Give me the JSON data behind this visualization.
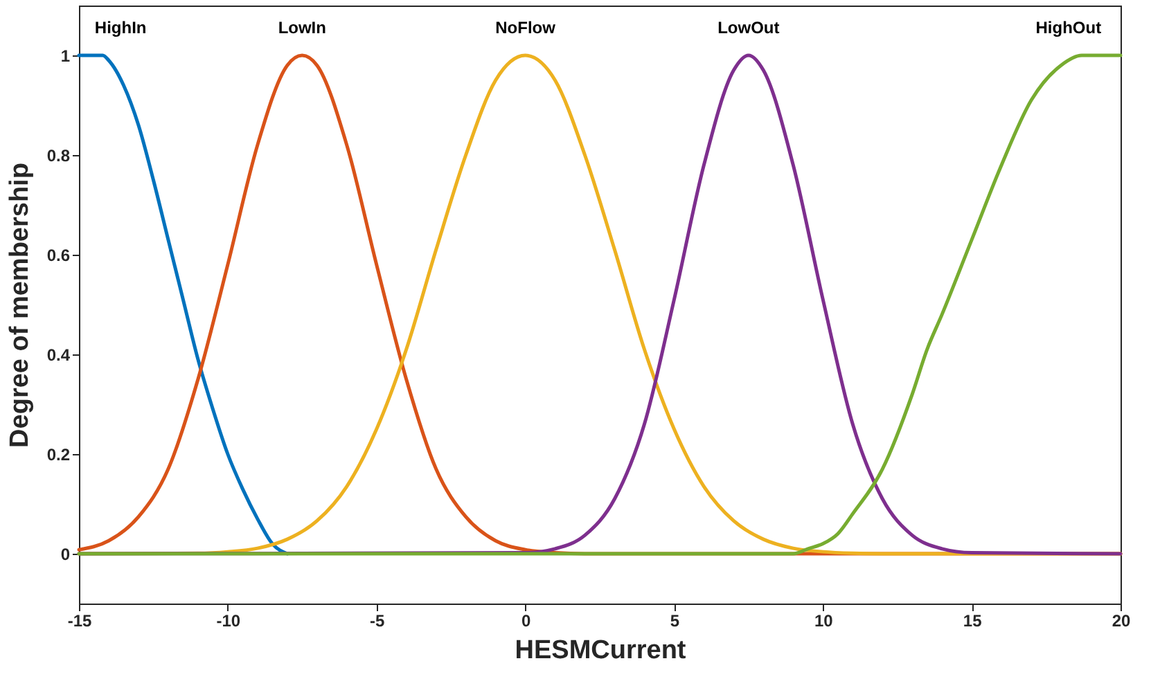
{
  "chart_data": {
    "type": "line",
    "xlabel": "HESMCurrent",
    "ylabel": "Degree of membership",
    "xlim": [
      -15,
      20
    ],
    "ylim": [
      -0.1,
      1.1
    ],
    "xticks": [
      -15,
      -10,
      -5,
      0,
      5,
      10,
      15,
      20
    ],
    "yticks": [
      0,
      0.2,
      0.4,
      0.6,
      0.8,
      1
    ],
    "grid": false,
    "legend": false,
    "marker": "none",
    "line_style": "solid",
    "series": [
      {
        "name": "HighIn",
        "color": "#0072bd",
        "x": [
          -15,
          -14.5,
          -14.2,
          -14,
          -13.5,
          -13,
          -12.5,
          -12,
          -11.5,
          -11,
          -10.5,
          -10,
          -9.5,
          -9,
          -8.5,
          -8
        ],
        "values": [
          1,
          1,
          1,
          0.99,
          0.94,
          0.86,
          0.75,
          0.63,
          0.51,
          0.39,
          0.29,
          0.2,
          0.13,
          0.07,
          0.02,
          0
        ]
      },
      {
        "name": "LowIn",
        "color": "#d95319",
        "x": [
          -15,
          -14,
          -13,
          -12,
          -11,
          -10,
          -9,
          -8,
          -7.5,
          -7,
          -6,
          -5,
          -4,
          -3,
          -2,
          -1,
          0,
          1,
          2,
          20
        ],
        "values": [
          0.008,
          0.026,
          0.074,
          0.17,
          0.35,
          0.58,
          0.82,
          0.98,
          1,
          0.98,
          0.82,
          0.58,
          0.35,
          0.17,
          0.074,
          0.026,
          0.008,
          0.002,
          0,
          0
        ]
      },
      {
        "name": "NoFlow",
        "color": "#edb120",
        "x": [
          -15,
          -11,
          -10,
          -9,
          -8,
          -7,
          -6,
          -5,
          -4,
          -3,
          -2,
          -1,
          0,
          1,
          2,
          3,
          4,
          5,
          6,
          7,
          8,
          9,
          10,
          11,
          12,
          20
        ],
        "values": [
          0,
          0.001,
          0.004,
          0.011,
          0.029,
          0.066,
          0.135,
          0.25,
          0.41,
          0.61,
          0.8,
          0.95,
          1,
          0.95,
          0.8,
          0.61,
          0.41,
          0.25,
          0.135,
          0.066,
          0.029,
          0.011,
          0.004,
          0.001,
          0,
          0
        ]
      },
      {
        "name": "LowOut",
        "color": "#7e2f8e",
        "x": [
          -15,
          0,
          1,
          2,
          3,
          4,
          5,
          6,
          7,
          7.5,
          8,
          9,
          10,
          11,
          12,
          13,
          14,
          15,
          20
        ],
        "values": [
          0,
          0.002,
          0.01,
          0.037,
          0.11,
          0.26,
          0.51,
          0.78,
          0.97,
          1,
          0.97,
          0.78,
          0.51,
          0.26,
          0.11,
          0.037,
          0.01,
          0.002,
          0
        ]
      },
      {
        "name": "HighOut",
        "color": "#77ac30",
        "x": [
          -15,
          9,
          9.5,
          10,
          10.5,
          11,
          12,
          13,
          13.5,
          14,
          15,
          16,
          17,
          18,
          18.7,
          19,
          20
        ],
        "values": [
          0,
          0,
          0.01,
          0.02,
          0.04,
          0.08,
          0.17,
          0.32,
          0.41,
          0.48,
          0.63,
          0.78,
          0.91,
          0.98,
          1,
          1,
          1
        ]
      }
    ]
  }
}
